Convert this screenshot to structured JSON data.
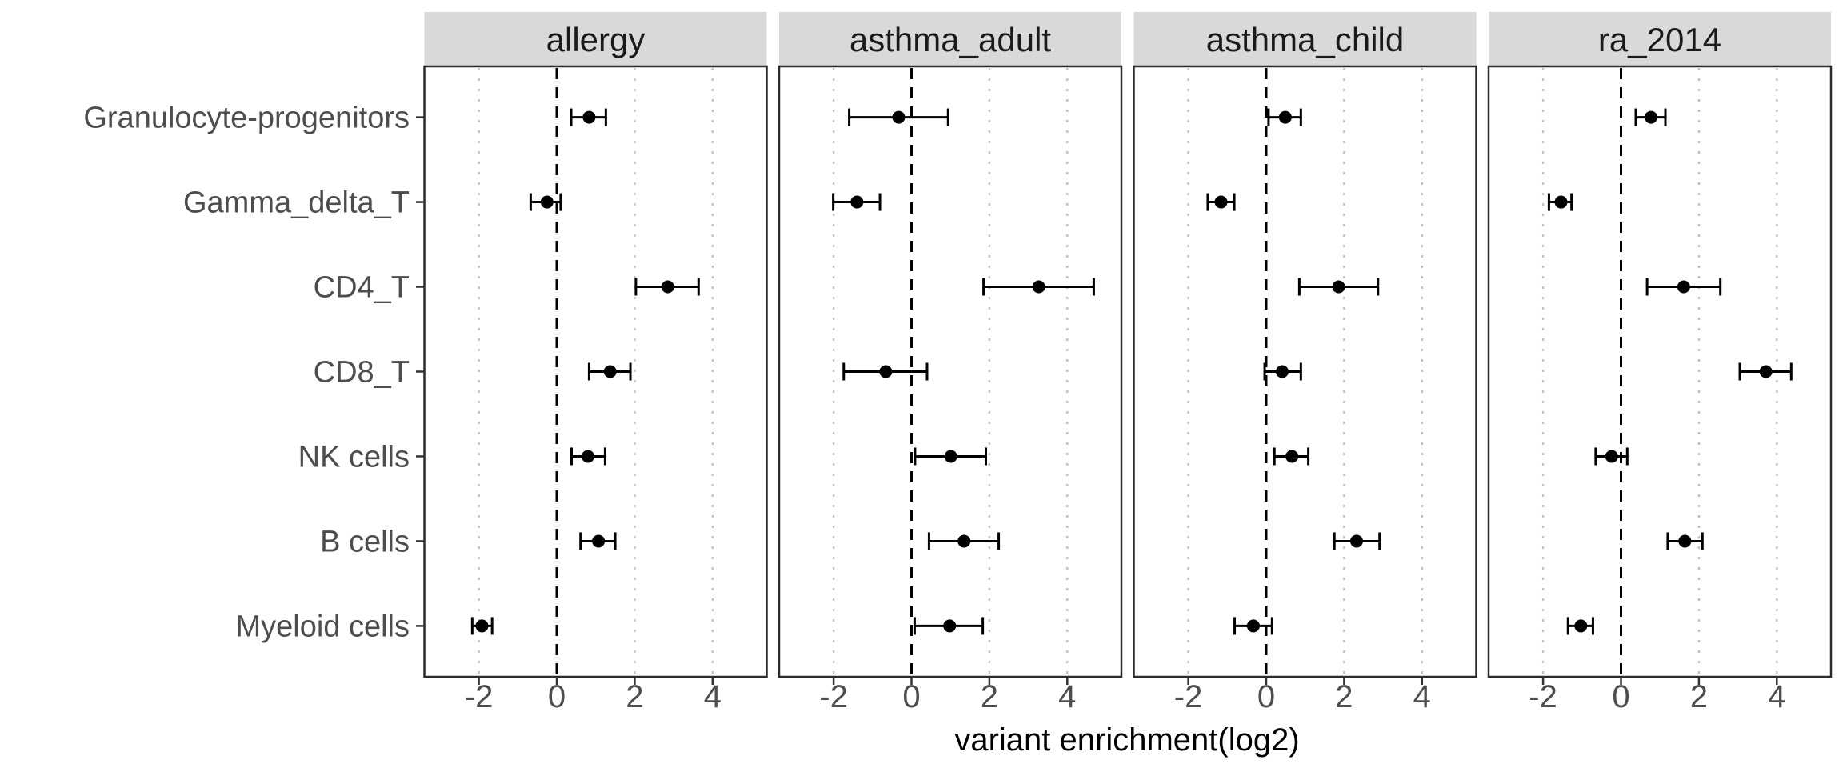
{
  "chart_data": {
    "type": "scatter",
    "subtype": "faceted-forest-plot-with-error-bars",
    "title": "",
    "xlabel": "variant enrichment(log2)",
    "ylabel": "",
    "categories": [
      "Granulocyte-progenitors",
      "Gamma_delta_T",
      "CD4_T",
      "CD8_T",
      "NK cells",
      "B cells",
      "Myeloid cells"
    ],
    "x_ticks": [
      -2,
      0,
      2,
      4
    ],
    "xlim": [
      -3.4,
      5.39
    ],
    "grid": "dotted vertical gridlines at x ticks",
    "reference_line_x": 0,
    "reference_line_style": "dashed black",
    "legend_position": "none",
    "facets": [
      {
        "title": "allergy",
        "estimates": [
          0.83,
          -0.25,
          2.85,
          1.37,
          0.8,
          1.07,
          -1.92
        ],
        "ci_low": [
          0.37,
          -0.67,
          2.03,
          0.83,
          0.38,
          0.61,
          -2.17
        ],
        "ci_high": [
          1.26,
          0.1,
          3.64,
          1.89,
          1.24,
          1.5,
          -1.66
        ]
      },
      {
        "title": "asthma_adult",
        "estimates": [
          -0.33,
          -1.4,
          3.27,
          -0.66,
          1.01,
          1.35,
          0.98
        ],
        "ci_low": [
          -1.6,
          -2.01,
          1.85,
          -1.74,
          0.09,
          0.45,
          0.08
        ],
        "ci_high": [
          0.94,
          -0.81,
          4.68,
          0.4,
          1.91,
          2.24,
          1.83
        ]
      },
      {
        "title": "asthma_child",
        "estimates": [
          0.49,
          -1.16,
          1.86,
          0.41,
          0.66,
          2.32,
          -0.33
        ],
        "ci_low": [
          0.06,
          -1.5,
          0.85,
          -0.04,
          0.21,
          1.75,
          -0.81
        ],
        "ci_high": [
          0.89,
          -0.82,
          2.87,
          0.89,
          1.08,
          2.91,
          0.15
        ]
      },
      {
        "title": "ra_2014",
        "estimates": [
          0.77,
          -1.54,
          1.61,
          3.72,
          -0.24,
          1.64,
          -1.03
        ],
        "ci_low": [
          0.38,
          -1.85,
          0.67,
          3.05,
          -0.65,
          1.2,
          -1.36
        ],
        "ci_high": [
          1.14,
          -1.27,
          2.55,
          4.37,
          0.16,
          2.09,
          -0.72
        ]
      }
    ],
    "colors": {
      "background": "#ffffff",
      "strip_bg": "#d9d9d9",
      "strip_text": "#1a1a1a",
      "panel_border": "#2b2b2b",
      "grid_dotted": "#c2c2c2",
      "zero_line": "#000000",
      "point": "#000000",
      "errorbar": "#000000",
      "axis_text": "#4d4d4d",
      "axis_title": "#000000",
      "tick_mark": "#333333"
    }
  }
}
